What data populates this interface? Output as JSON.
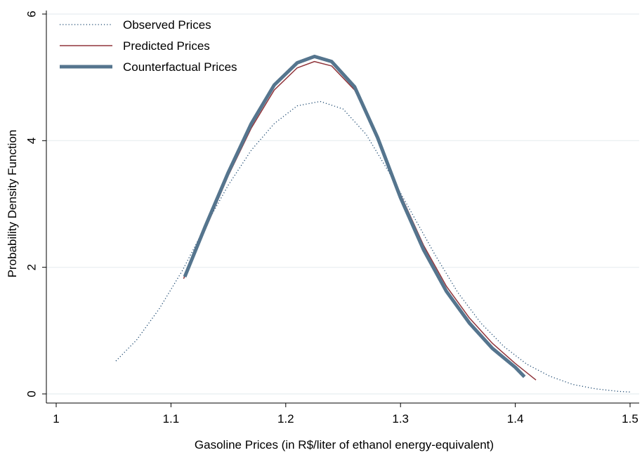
{
  "chart_data": {
    "type": "line",
    "xlabel": "Gasoline Prices (in R$/liter of ethanol energy-equivalent)",
    "ylabel": "Probability Density Function",
    "xlim": [
      1,
      1.5
    ],
    "xticks": [
      1,
      1.1,
      1.2,
      1.3,
      1.4,
      1.5
    ],
    "ylim": [
      0,
      6
    ],
    "yticks": [
      0,
      2,
      4,
      6
    ],
    "grid": true,
    "legend": "top-left",
    "series": [
      {
        "name": "Observed Prices",
        "color": "#1a476f",
        "style": "dotted",
        "width": 1.3,
        "x": [
          1.052,
          1.07,
          1.09,
          1.11,
          1.13,
          1.15,
          1.17,
          1.19,
          1.21,
          1.23,
          1.25,
          1.27,
          1.29,
          1.31,
          1.33,
          1.35,
          1.37,
          1.39,
          1.41,
          1.43,
          1.45,
          1.47,
          1.49,
          1.5
        ],
        "values": [
          0.52,
          0.85,
          1.35,
          1.95,
          2.65,
          3.3,
          3.85,
          4.27,
          4.55,
          4.62,
          4.5,
          4.1,
          3.5,
          2.85,
          2.2,
          1.6,
          1.12,
          0.75,
          0.47,
          0.28,
          0.15,
          0.08,
          0.04,
          0.03
        ]
      },
      {
        "name": "Predicted Prices",
        "color": "#90353b",
        "style": "solid",
        "width": 1.5,
        "x": [
          1.111,
          1.13,
          1.15,
          1.17,
          1.19,
          1.21,
          1.225,
          1.24,
          1.26,
          1.28,
          1.3,
          1.32,
          1.34,
          1.36,
          1.38,
          1.4,
          1.418
        ],
        "values": [
          1.82,
          2.6,
          3.45,
          4.2,
          4.8,
          5.15,
          5.25,
          5.18,
          4.8,
          4.05,
          3.15,
          2.35,
          1.7,
          1.2,
          0.8,
          0.48,
          0.22
        ]
      },
      {
        "name": "Counterfactual Prices",
        "color": "#55758e",
        "style": "solid",
        "width": 5,
        "x": [
          1.112,
          1.13,
          1.15,
          1.17,
          1.19,
          1.21,
          1.225,
          1.24,
          1.26,
          1.28,
          1.3,
          1.32,
          1.34,
          1.36,
          1.38,
          1.4,
          1.408
        ],
        "values": [
          1.85,
          2.65,
          3.5,
          4.27,
          4.88,
          5.23,
          5.33,
          5.25,
          4.85,
          4.05,
          3.1,
          2.28,
          1.62,
          1.12,
          0.72,
          0.42,
          0.27
        ]
      }
    ]
  }
}
